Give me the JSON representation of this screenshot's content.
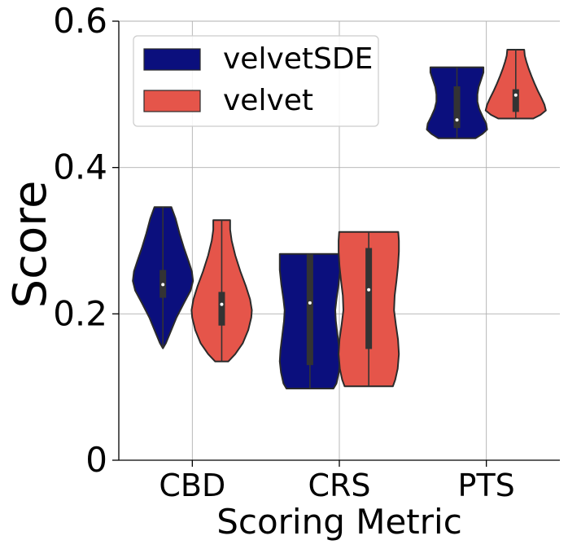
{
  "chart_data": {
    "type": "violin",
    "xlabel": "Scoring Metric",
    "ylabel": "Score",
    "ylim": [
      0,
      0.6
    ],
    "yticks": [
      {
        "value": 0,
        "label": "0"
      },
      {
        "value": 0.2,
        "label": "0.2"
      },
      {
        "value": 0.4,
        "label": "0.4"
      },
      {
        "value": 0.6,
        "label": "0.6"
      }
    ],
    "categories": [
      "CBD",
      "CRS",
      "PTS"
    ],
    "grid": true,
    "legend_position": "top-left",
    "series": [
      {
        "name": "velvetSDE",
        "color": "#0b0f7d",
        "violins": [
          {
            "min": 0.153,
            "max": 0.346,
            "q1": 0.222,
            "median": 0.24,
            "q3": 0.26,
            "profile": [
              [
                0.153,
                0.0
              ],
              [
                0.16,
                0.1
              ],
              [
                0.175,
                0.25
              ],
              [
                0.195,
                0.45
              ],
              [
                0.215,
                0.7
              ],
              [
                0.232,
                0.92
              ],
              [
                0.245,
                1.0
              ],
              [
                0.258,
                0.96
              ],
              [
                0.272,
                0.85
              ],
              [
                0.29,
                0.7
              ],
              [
                0.31,
                0.55
              ],
              [
                0.33,
                0.42
              ],
              [
                0.346,
                0.28
              ]
            ]
          },
          {
            "min": 0.098,
            "max": 0.282,
            "q1": 0.13,
            "median": 0.215,
            "q3": 0.282,
            "profile": [
              [
                0.098,
                0.78
              ],
              [
                0.105,
                0.88
              ],
              [
                0.12,
                0.96
              ],
              [
                0.135,
                1.0
              ],
              [
                0.15,
                0.98
              ],
              [
                0.17,
                0.92
              ],
              [
                0.19,
                0.86
              ],
              [
                0.205,
                0.84
              ],
              [
                0.22,
                0.88
              ],
              [
                0.24,
                0.95
              ],
              [
                0.26,
                1.0
              ],
              [
                0.275,
                1.0
              ],
              [
                0.282,
                1.0
              ]
            ]
          },
          {
            "min": 0.44,
            "max": 0.537,
            "q1": 0.454,
            "median": 0.465,
            "q3": 0.511,
            "profile": [
              [
                0.44,
                0.62
              ],
              [
                0.446,
                0.85
              ],
              [
                0.452,
                1.0
              ],
              [
                0.46,
                0.97
              ],
              [
                0.47,
                0.85
              ],
              [
                0.48,
                0.74
              ],
              [
                0.49,
                0.68
              ],
              [
                0.5,
                0.68
              ],
              [
                0.51,
                0.72
              ],
              [
                0.52,
                0.8
              ],
              [
                0.53,
                0.88
              ],
              [
                0.537,
                0.88
              ]
            ]
          }
        ]
      },
      {
        "name": "velvet",
        "color": "#e5554a",
        "violins": [
          {
            "min": 0.135,
            "max": 0.328,
            "q1": 0.184,
            "median": 0.213,
            "q3": 0.23,
            "profile": [
              [
                0.135,
                0.22
              ],
              [
                0.145,
                0.45
              ],
              [
                0.16,
                0.7
              ],
              [
                0.178,
                0.88
              ],
              [
                0.195,
                0.98
              ],
              [
                0.205,
                1.0
              ],
              [
                0.22,
                0.94
              ],
              [
                0.238,
                0.8
              ],
              [
                0.258,
                0.62
              ],
              [
                0.28,
                0.45
              ],
              [
                0.3,
                0.33
              ],
              [
                0.315,
                0.28
              ],
              [
                0.328,
                0.28
              ]
            ]
          },
          {
            "min": 0.101,
            "max": 0.312,
            "q1": 0.152,
            "median": 0.233,
            "q3": 0.29,
            "profile": [
              [
                0.101,
                0.8
              ],
              [
                0.11,
                0.88
              ],
              [
                0.125,
                0.96
              ],
              [
                0.145,
                1.0
              ],
              [
                0.165,
                0.97
              ],
              [
                0.185,
                0.9
              ],
              [
                0.205,
                0.84
              ],
              [
                0.225,
                0.86
              ],
              [
                0.245,
                0.92
              ],
              [
                0.265,
                0.97
              ],
              [
                0.285,
                1.0
              ],
              [
                0.3,
                1.0
              ],
              [
                0.312,
                0.98
              ]
            ]
          },
          {
            "min": 0.467,
            "max": 0.561,
            "q1": 0.476,
            "median": 0.499,
            "q3": 0.507,
            "profile": [
              [
                0.467,
                0.58
              ],
              [
                0.472,
                0.82
              ],
              [
                0.478,
                1.0
              ],
              [
                0.486,
                0.95
              ],
              [
                0.495,
                0.85
              ],
              [
                0.505,
                0.73
              ],
              [
                0.515,
                0.62
              ],
              [
                0.525,
                0.52
              ],
              [
                0.535,
                0.43
              ],
              [
                0.545,
                0.35
              ],
              [
                0.553,
                0.3
              ],
              [
                0.561,
                0.28
              ]
            ]
          }
        ]
      }
    ]
  }
}
